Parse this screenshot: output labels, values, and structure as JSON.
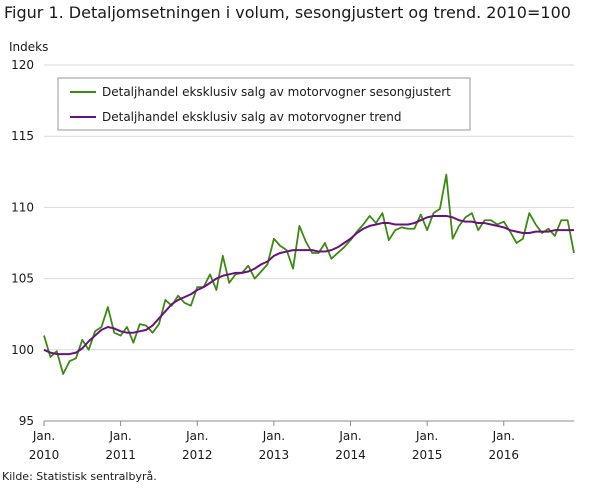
{
  "title": "Figur 1. Detaljomsetningen i volum, sesongjustert og trend. 2010=100",
  "source": "Kilde: Statistisk sentralbyrå.",
  "colors": {
    "seasonal": "#3d8a12",
    "trend": "#6b1080",
    "grid": "#d9d9d9",
    "axis": "#8c8c8c"
  },
  "chart_data": {
    "type": "line",
    "title": "Figur 1. Detaljomsetningen i volum, sesongjustert og trend. 2010=100",
    "ylabel": "Indeks",
    "xlabel": "",
    "ylim": [
      95,
      120
    ],
    "yticks": [
      95,
      100,
      105,
      110,
      115,
      120
    ],
    "xticks": [
      {
        "month": 0,
        "line1": "Jan.",
        "line2": "2010"
      },
      {
        "month": 12,
        "line1": "Jan.",
        "line2": "2011"
      },
      {
        "month": 24,
        "line1": "Jan.",
        "line2": "2012"
      },
      {
        "month": 36,
        "line1": "Jan.",
        "line2": "2013"
      },
      {
        "month": 48,
        "line1": "Jan.",
        "line2": "2014"
      },
      {
        "month": 60,
        "line1": "Jan.",
        "line2": "2015"
      },
      {
        "month": 72,
        "line1": "Jan.",
        "line2": "2016"
      }
    ],
    "period": "2010M01–2016M12 (monthly)",
    "grid": "horizontal",
    "legend_position": "top-left",
    "series": [
      {
        "name": "Detaljhandel eksklusiv salg av motorvogner sesongjustert",
        "color_key": "seasonal",
        "values": [
          101.0,
          99.5,
          99.9,
          98.3,
          99.2,
          99.4,
          100.7,
          100.0,
          101.3,
          101.6,
          103.0,
          101.2,
          101.0,
          101.6,
          100.5,
          101.8,
          101.7,
          101.2,
          101.8,
          103.5,
          103.1,
          103.8,
          103.3,
          103.1,
          104.4,
          104.4,
          105.3,
          104.2,
          106.6,
          104.7,
          105.3,
          105.4,
          105.9,
          105.0,
          105.5,
          106.0,
          107.8,
          107.3,
          107.0,
          105.7,
          108.7,
          107.6,
          106.8,
          106.8,
          107.5,
          106.4,
          106.8,
          107.2,
          107.7,
          108.3,
          108.8,
          109.4,
          108.9,
          109.6,
          107.7,
          108.4,
          108.6,
          108.5,
          108.5,
          109.5,
          108.4,
          109.6,
          109.9,
          112.3,
          107.8,
          108.7,
          109.3,
          109.6,
          108.4,
          109.1,
          109.1,
          108.8,
          109.0,
          108.3,
          107.5,
          107.8,
          109.6,
          108.8,
          108.2,
          108.5,
          108.0,
          109.1,
          109.1,
          106.8
        ]
      },
      {
        "name": "Detaljhandel eksklusiv salg av motorvogner trend",
        "color_key": "trend",
        "values": [
          100.0,
          99.8,
          99.7,
          99.7,
          99.7,
          99.8,
          100.1,
          100.6,
          101.0,
          101.4,
          101.6,
          101.5,
          101.3,
          101.2,
          101.2,
          101.3,
          101.4,
          101.7,
          102.2,
          102.7,
          103.2,
          103.5,
          103.7,
          103.9,
          104.2,
          104.4,
          104.7,
          105.0,
          105.2,
          105.3,
          105.4,
          105.4,
          105.5,
          105.7,
          106.0,
          106.2,
          106.6,
          106.8,
          106.9,
          107.0,
          107.0,
          107.0,
          107.0,
          106.9,
          106.9,
          107.0,
          107.2,
          107.5,
          107.8,
          108.2,
          108.5,
          108.7,
          108.8,
          108.9,
          108.9,
          108.8,
          108.8,
          108.8,
          108.9,
          109.1,
          109.3,
          109.4,
          109.4,
          109.4,
          109.3,
          109.1,
          109.0,
          109.0,
          108.9,
          108.9,
          108.8,
          108.7,
          108.6,
          108.4,
          108.3,
          108.2,
          108.2,
          108.3,
          108.3,
          108.3,
          108.4,
          108.4,
          108.4,
          108.4
        ]
      }
    ]
  }
}
